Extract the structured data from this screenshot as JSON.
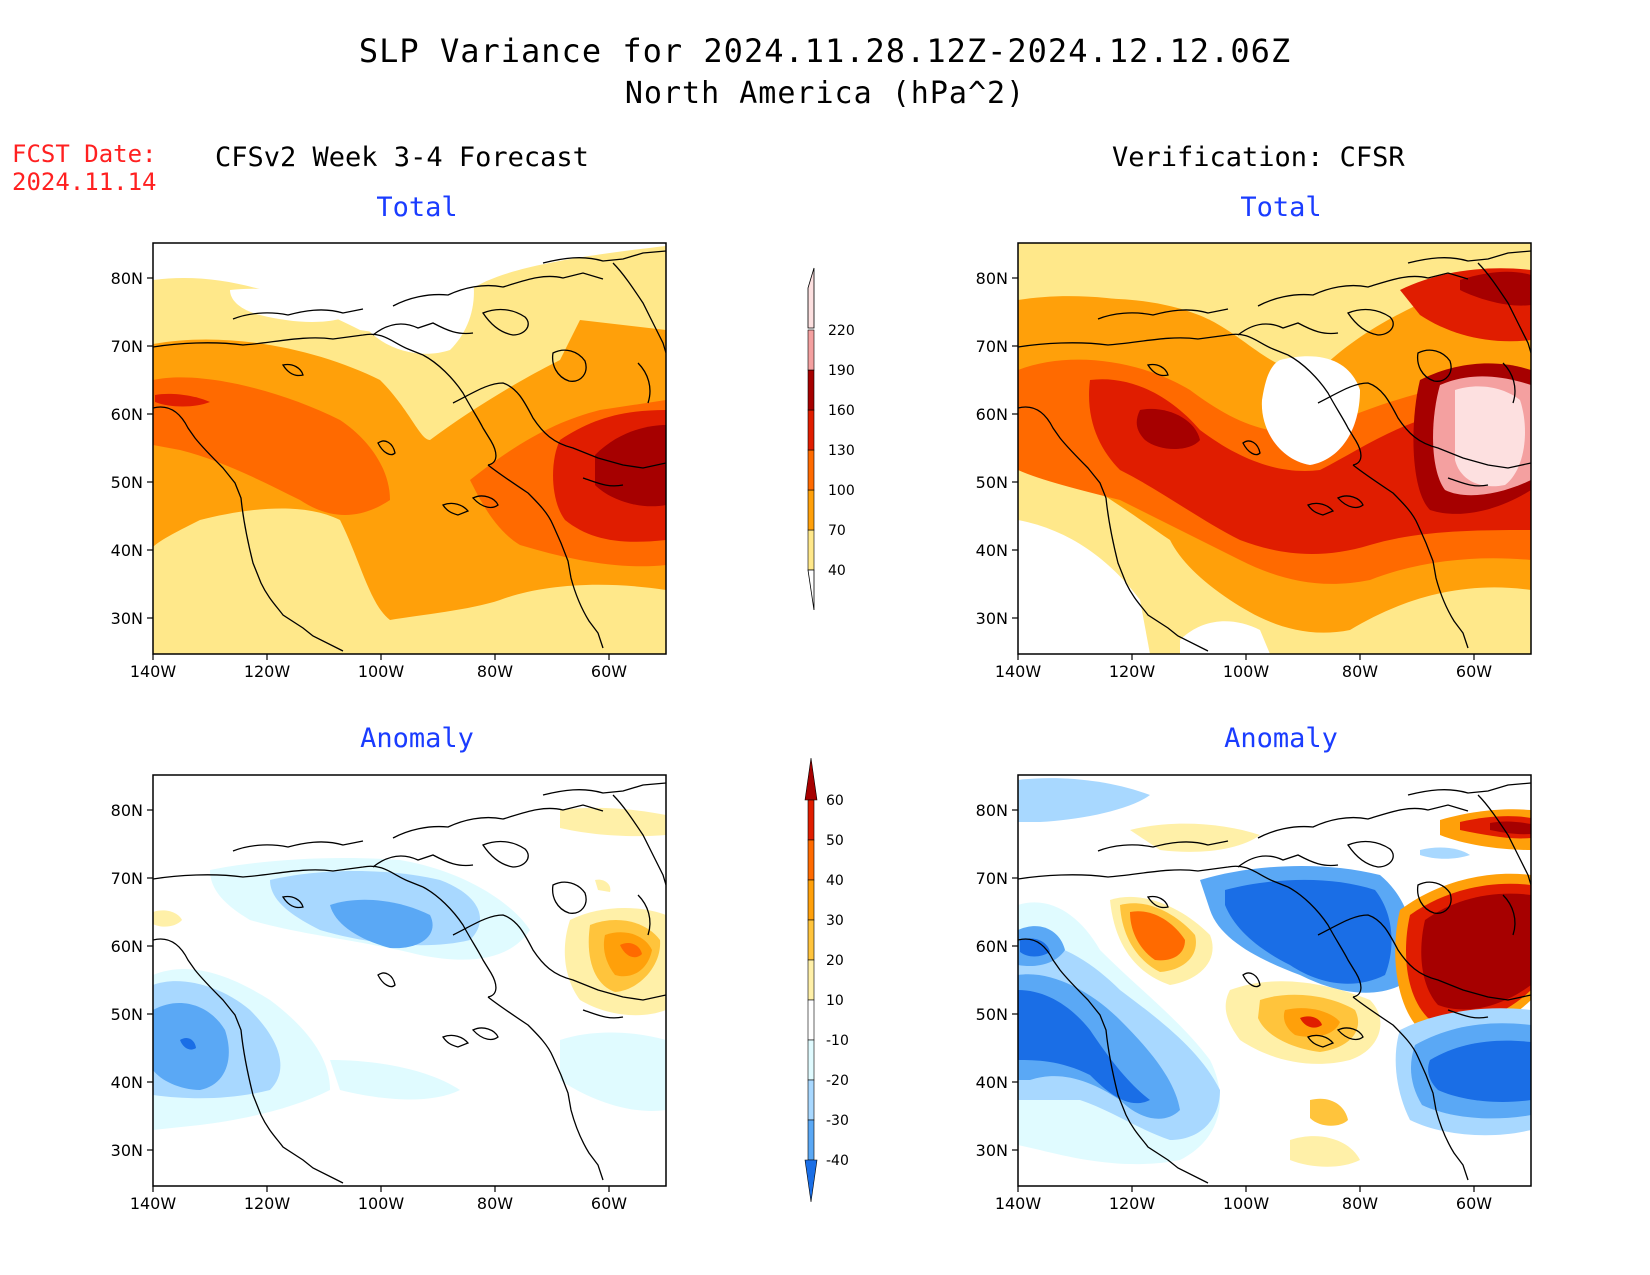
{
  "title": {
    "line1": "SLP Variance for 2024.11.28.12Z-2024.12.12.06Z",
    "line2": "North America (hPa^2)"
  },
  "fcst_date": {
    "label": "FCST Date:",
    "value": "2024.11.14"
  },
  "columns": {
    "left": "CFSv2 Week 3-4 Forecast",
    "right": "Verification: CFSR"
  },
  "panel_titles": {
    "total": "Total",
    "anomaly": "Anomaly"
  },
  "axes": {
    "lat_labels": [
      "80N",
      "70N",
      "60N",
      "50N",
      "40N",
      "30N"
    ],
    "lon_labels": [
      "140W",
      "120W",
      "100W",
      "80W",
      "60W"
    ]
  },
  "colorbars": {
    "total": {
      "levels": [
        "40",
        "70",
        "100",
        "130",
        "160",
        "190",
        "220"
      ],
      "colors": [
        "#ffffff",
        "#ffe88a",
        "#ffa00a",
        "#ff6a00",
        "#e01d00",
        "#a60000",
        "#f4a0a0",
        "#fde0e0"
      ]
    },
    "anomaly": {
      "levels": [
        "60",
        "50",
        "40",
        "30",
        "20",
        "10",
        "-10",
        "-20",
        "-30",
        "-40"
      ],
      "colors": [
        "#a60000",
        "#e01d00",
        "#ff6a00",
        "#ffa00a",
        "#ffc43c",
        "#fff0a8",
        "#ffffff",
        "#e0fbff",
        "#a8d8ff",
        "#5aa8f5",
        "#1a6ee6"
      ]
    }
  },
  "icons": {
    "map": "north-america-map",
    "colorbar": "gradient-scale"
  }
}
